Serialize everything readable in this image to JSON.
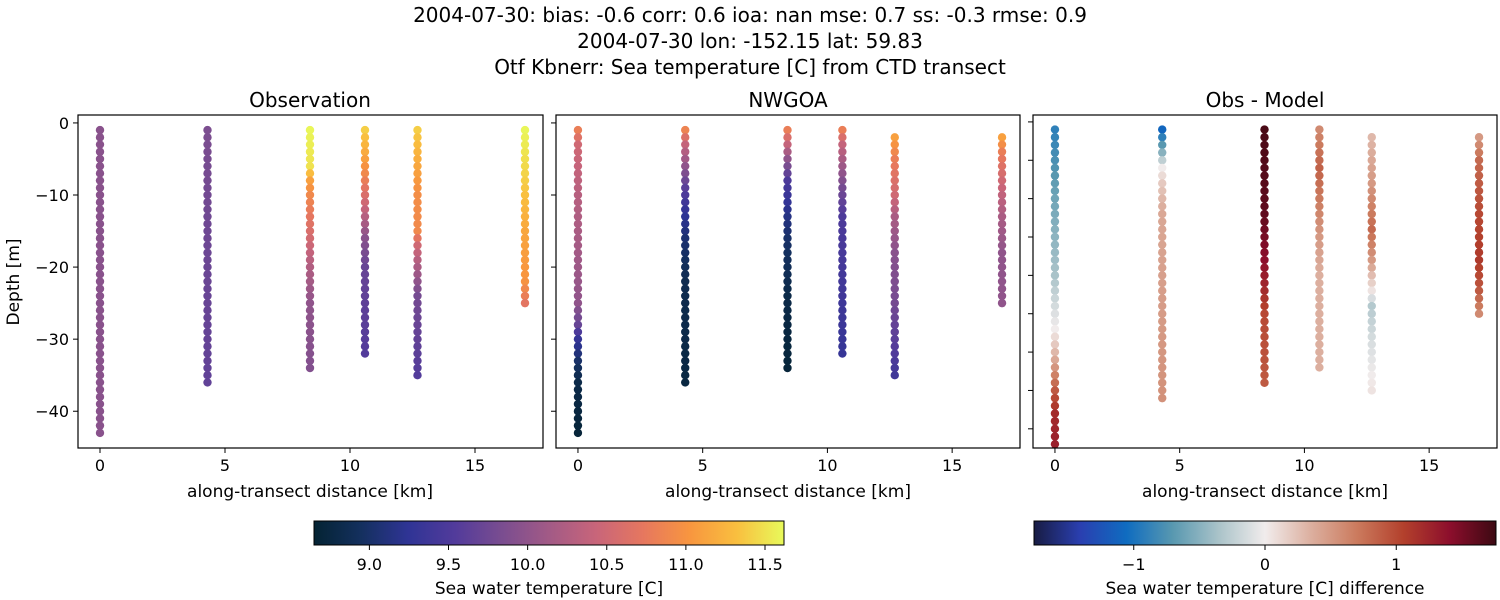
{
  "title_lines": [
    "2004-07-30: bias: -0.6  corr: 0.6  ioa: nan  mse: 0.7  ss: -0.3  rmse: 0.9",
    "2004-07-30 lon: -152.15 lat: 59.83",
    "Otf Kbnerr: Sea temperature [C] from CTD transect"
  ],
  "chart_data": [
    {
      "type": "scatter",
      "title": "Observation",
      "xlabel": "along-transect distance [km]",
      "ylabel": "Depth [m]",
      "xlim": [
        -0.88,
        17.72
      ],
      "ylim": [
        -45.1,
        1.1
      ],
      "xticks": [
        0,
        5,
        10,
        15
      ],
      "yticks": [
        0,
        -10,
        -20,
        -30,
        -40
      ],
      "colormap": "thermal",
      "clim": [
        8.65,
        11.62
      ],
      "stations": [
        {
          "x": 0.0,
          "depth_top": -1,
          "depth_bottom": -43,
          "profile": [
            [
              -1,
              9.95
            ],
            [
              -43,
              9.95
            ]
          ]
        },
        {
          "x": 4.3,
          "depth_top": -1,
          "depth_bottom": -36,
          "profile": [
            [
              -1,
              9.85
            ],
            [
              -15,
              9.75
            ],
            [
              -36,
              9.65
            ]
          ]
        },
        {
          "x": 8.4,
          "depth_top": -1,
          "depth_bottom": -34,
          "profile": [
            [
              -1,
              11.6
            ],
            [
              -6,
              11.5
            ],
            [
              -8,
              11.1
            ],
            [
              -10,
              10.9
            ],
            [
              -15,
              10.6
            ],
            [
              -20,
              10.25
            ],
            [
              -25,
              10.0
            ],
            [
              -34,
              9.9
            ]
          ]
        },
        {
          "x": 10.6,
          "depth_top": -1,
          "depth_bottom": -32,
          "profile": [
            [
              -1,
              11.4
            ],
            [
              -5,
              11.1
            ],
            [
              -8,
              10.8
            ],
            [
              -12,
              10.4
            ],
            [
              -16,
              9.95
            ],
            [
              -20,
              9.7
            ],
            [
              -32,
              9.55
            ]
          ]
        },
        {
          "x": 12.7,
          "depth_top": -1,
          "depth_bottom": -35,
          "profile": [
            [
              -1,
              11.4
            ],
            [
              -10,
              10.95
            ],
            [
              -15,
              10.9
            ],
            [
              -17,
              10.5
            ],
            [
              -20,
              10.2
            ],
            [
              -24,
              9.8
            ],
            [
              -35,
              9.55
            ]
          ]
        },
        {
          "x": 17.0,
          "depth_top": -1,
          "depth_bottom": -25,
          "profile": [
            [
              -1,
              11.6
            ],
            [
              -8,
              11.4
            ],
            [
              -15,
              11.15
            ],
            [
              -22,
              11.0
            ],
            [
              -25,
              10.7
            ]
          ]
        }
      ]
    },
    {
      "type": "scatter",
      "title": "NWGOA",
      "xlabel": "along-transect distance [km]",
      "xlim": [
        -0.88,
        17.72
      ],
      "ylim": [
        -45.1,
        1.1
      ],
      "xticks": [
        0,
        5,
        10,
        15
      ],
      "yticks": [
        0,
        -10,
        -20,
        -30,
        -40
      ],
      "colormap": "thermal",
      "clim": [
        8.65,
        11.62
      ],
      "stations": [
        {
          "x": 0.0,
          "depth_top": -1,
          "depth_bottom": -43,
          "profile": [
            [
              -1,
              10.8
            ],
            [
              -3,
              10.5
            ],
            [
              -10,
              10.3
            ],
            [
              -20,
              10.1
            ],
            [
              -25,
              10.0
            ],
            [
              -28,
              9.7
            ],
            [
              -30,
              9.3
            ],
            [
              -33,
              9.0
            ],
            [
              -36,
              8.8
            ],
            [
              -43,
              8.7
            ]
          ]
        },
        {
          "x": 4.3,
          "depth_top": -1,
          "depth_bottom": -36,
          "profile": [
            [
              -1,
              10.85
            ],
            [
              -3,
              10.4
            ],
            [
              -6,
              10.0
            ],
            [
              -9,
              9.6
            ],
            [
              -12,
              9.3
            ],
            [
              -16,
              9.05
            ],
            [
              -22,
              8.85
            ],
            [
              -36,
              8.75
            ]
          ]
        },
        {
          "x": 8.4,
          "depth_top": -1,
          "depth_bottom": -34,
          "profile": [
            [
              -1,
              10.8
            ],
            [
              -3,
              10.4
            ],
            [
              -5,
              10.0
            ],
            [
              -8,
              9.5
            ],
            [
              -12,
              9.2
            ],
            [
              -16,
              9.0
            ],
            [
              -24,
              8.8
            ],
            [
              -34,
              8.7
            ]
          ]
        },
        {
          "x": 10.6,
          "depth_top": -1,
          "depth_bottom": -32,
          "profile": [
            [
              -1,
              10.8
            ],
            [
              -3,
              10.4
            ],
            [
              -6,
              10.1
            ],
            [
              -9,
              9.8
            ],
            [
              -13,
              9.5
            ],
            [
              -32,
              9.3
            ]
          ]
        },
        {
          "x": 12.7,
          "depth_top": -2,
          "depth_bottom": -35,
          "profile": [
            [
              -2,
              11.1
            ],
            [
              -5,
              10.8
            ],
            [
              -10,
              10.5
            ],
            [
              -13,
              10.2
            ],
            [
              -18,
              9.95
            ],
            [
              -25,
              9.8
            ],
            [
              -35,
              9.4
            ]
          ]
        },
        {
          "x": 17.0,
          "depth_top": -2,
          "depth_bottom": -25,
          "profile": [
            [
              -2,
              11.1
            ],
            [
              -4,
              10.8
            ],
            [
              -8,
              10.5
            ],
            [
              -13,
              10.2
            ],
            [
              -18,
              10.0
            ],
            [
              -25,
              10.0
            ]
          ]
        }
      ]
    },
    {
      "type": "scatter",
      "title": "Obs - Model",
      "xlabel": "along-transect distance [km]",
      "xlim": [
        -0.88,
        17.72
      ],
      "ylim": [
        -42.5,
        0.9
      ],
      "xticks": [
        0,
        5,
        10,
        15
      ],
      "yticks": [
        0,
        -5,
        -10,
        -15,
        -20,
        -25,
        -30,
        -35,
        -40
      ],
      "colormap": "balance",
      "clim": [
        -1.76,
        1.76
      ],
      "stations": [
        {
          "x": 0.0,
          "depth_top": -1,
          "depth_bottom": -43,
          "profile": [
            [
              -1,
              -0.9
            ],
            [
              -10,
              -0.6
            ],
            [
              -20,
              -0.35
            ],
            [
              -27,
              0.0
            ],
            [
              -31,
              0.4
            ],
            [
              -35,
              0.9
            ],
            [
              -38,
              1.2
            ],
            [
              -43,
              1.3
            ]
          ]
        },
        {
          "x": 4.3,
          "depth_top": -1,
          "depth_bottom": -36,
          "profile": [
            [
              -1,
              -1.1
            ],
            [
              -4,
              -0.5
            ],
            [
              -6,
              0.0
            ],
            [
              -8,
              0.2
            ],
            [
              -12,
              0.4
            ],
            [
              -36,
              0.55
            ]
          ]
        },
        {
          "x": 8.4,
          "depth_top": -1,
          "depth_bottom": -34,
          "profile": [
            [
              -1,
              1.7
            ],
            [
              -12,
              1.6
            ],
            [
              -18,
              1.4
            ],
            [
              -22,
              1.2
            ],
            [
              -25,
              1.0
            ],
            [
              -34,
              0.9
            ]
          ]
        },
        {
          "x": 10.6,
          "depth_top": -1,
          "depth_bottom": -32,
          "profile": [
            [
              -1,
              0.6
            ],
            [
              -6,
              0.85
            ],
            [
              -15,
              0.5
            ],
            [
              -20,
              0.35
            ],
            [
              -32,
              0.35
            ]
          ]
        },
        {
          "x": 12.7,
          "depth_top": -2,
          "depth_bottom": -35,
          "profile": [
            [
              -2,
              0.3
            ],
            [
              -8,
              0.5
            ],
            [
              -14,
              0.8
            ],
            [
              -18,
              0.5
            ],
            [
              -22,
              0.05
            ],
            [
              -24,
              -0.3
            ],
            [
              -28,
              -0.15
            ],
            [
              -35,
              0.05
            ]
          ]
        },
        {
          "x": 17.0,
          "depth_top": -2,
          "depth_bottom": -25,
          "profile": [
            [
              -2,
              0.5
            ],
            [
              -5,
              0.8
            ],
            [
              -12,
              1.0
            ],
            [
              -18,
              1.1
            ],
            [
              -22,
              0.9
            ],
            [
              -25,
              0.6
            ]
          ]
        }
      ]
    }
  ],
  "colorbars": [
    {
      "label": "Sea water temperature [C]",
      "colormap": "thermal",
      "range": [
        8.65,
        11.62
      ],
      "ticks": [
        9.0,
        9.5,
        10.0,
        10.5,
        11.0,
        11.5
      ],
      "tick_labels": [
        "9.0",
        "9.5",
        "10.0",
        "10.5",
        "11.0",
        "11.5"
      ]
    },
    {
      "label": "Sea water temperature [C] difference",
      "colormap": "balance",
      "range": [
        -1.76,
        1.76
      ],
      "ticks": [
        -1,
        0,
        1
      ],
      "tick_labels": [
        "−1",
        "0",
        "1"
      ]
    }
  ],
  "colormaps": {
    "thermal": [
      "#042333",
      "#14305e",
      "#2f3495",
      "#523b9b",
      "#7a4d90",
      "#a25a86",
      "#c8657a",
      "#e6775f",
      "#f8963f",
      "#f9bf3f",
      "#e8fa5b"
    ],
    "balance": [
      "#181c43",
      "#2a3fb0",
      "#0f6cc0",
      "#5898b0",
      "#aac3c9",
      "#f1ecec",
      "#dcaf9f",
      "#cb7a5d",
      "#b3402c",
      "#8c0e2c",
      "#3c0912"
    ]
  }
}
